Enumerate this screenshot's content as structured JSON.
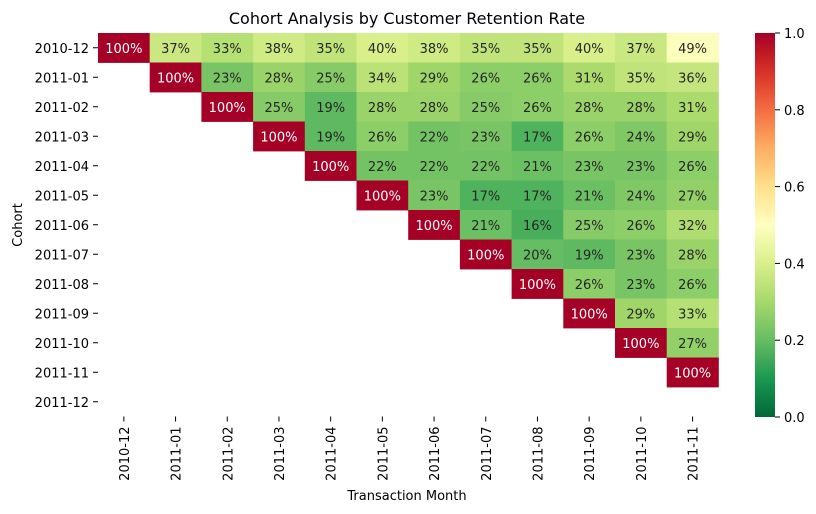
{
  "chart_data": {
    "type": "heatmap",
    "title": "Cohort Analysis by Customer Retention Rate",
    "xlabel": "Transaction Month",
    "ylabel": "Cohort",
    "x_categories": [
      "2010-12",
      "2011-01",
      "2011-02",
      "2011-03",
      "2011-04",
      "2011-05",
      "2011-06",
      "2011-07",
      "2011-08",
      "2011-09",
      "2011-10",
      "2011-11"
    ],
    "y_categories": [
      "2010-12",
      "2011-01",
      "2011-02",
      "2011-03",
      "2011-04",
      "2011-05",
      "2011-06",
      "2011-07",
      "2011-08",
      "2011-09",
      "2011-10",
      "2011-11",
      "2011-12"
    ],
    "values": [
      [
        1.0,
        0.37,
        0.33,
        0.38,
        0.35,
        0.4,
        0.38,
        0.35,
        0.35,
        0.4,
        0.37,
        0.49
      ],
      [
        null,
        1.0,
        0.23,
        0.28,
        0.25,
        0.34,
        0.29,
        0.26,
        0.26,
        0.31,
        0.35,
        0.36
      ],
      [
        null,
        null,
        1.0,
        0.25,
        0.19,
        0.28,
        0.28,
        0.25,
        0.26,
        0.28,
        0.28,
        0.31
      ],
      [
        null,
        null,
        null,
        1.0,
        0.19,
        0.26,
        0.22,
        0.23,
        0.17,
        0.26,
        0.24,
        0.29
      ],
      [
        null,
        null,
        null,
        null,
        1.0,
        0.22,
        0.22,
        0.22,
        0.21,
        0.23,
        0.23,
        0.26
      ],
      [
        null,
        null,
        null,
        null,
        null,
        1.0,
        0.23,
        0.17,
        0.17,
        0.21,
        0.24,
        0.27
      ],
      [
        null,
        null,
        null,
        null,
        null,
        null,
        1.0,
        0.21,
        0.16,
        0.25,
        0.26,
        0.32
      ],
      [
        null,
        null,
        null,
        null,
        null,
        null,
        null,
        1.0,
        0.2,
        0.19,
        0.23,
        0.28
      ],
      [
        null,
        null,
        null,
        null,
        null,
        null,
        null,
        null,
        1.0,
        0.26,
        0.23,
        0.26
      ],
      [
        null,
        null,
        null,
        null,
        null,
        null,
        null,
        null,
        null,
        1.0,
        0.29,
        0.33
      ],
      [
        null,
        null,
        null,
        null,
        null,
        null,
        null,
        null,
        null,
        null,
        1.0,
        0.27
      ],
      [
        null,
        null,
        null,
        null,
        null,
        null,
        null,
        null,
        null,
        null,
        null,
        1.0
      ],
      [
        null,
        null,
        null,
        null,
        null,
        null,
        null,
        null,
        null,
        null,
        null,
        null
      ]
    ],
    "value_format": "percent",
    "colormap": "RdYlGn_r",
    "vmin": 0.0,
    "vmax": 1.0,
    "colorbar_ticks": [
      "0.0",
      "0.2",
      "0.4",
      "0.6",
      "0.8",
      "1.0"
    ]
  }
}
